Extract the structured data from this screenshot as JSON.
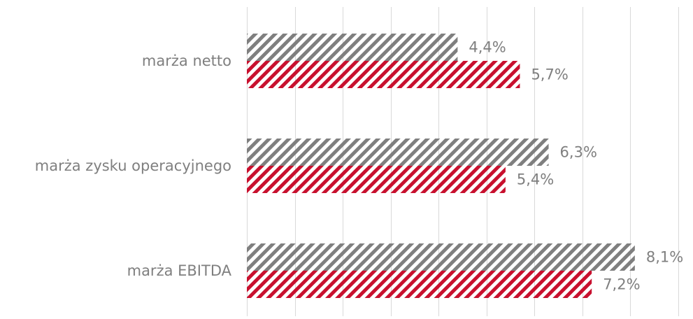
{
  "chart_data": {
    "type": "bar",
    "orientation": "horizontal",
    "title": "",
    "xlabel": "",
    "ylabel": "",
    "categories": [
      "marża netto",
      "marża zysku operacyjnego",
      "marża EBITDA"
    ],
    "series": [
      {
        "color": "#7f7f7f",
        "values": [
          4.4,
          6.3,
          8.1
        ],
        "labels": [
          "4,4%",
          "6,3%",
          "8,1%"
        ]
      },
      {
        "color": "#c8102e",
        "values": [
          5.7,
          5.4,
          7.2
        ],
        "labels": [
          "5,7%",
          "5,4%",
          "7,2%"
        ]
      }
    ],
    "xlim": [
      0,
      9
    ],
    "x_grid_step": 1,
    "grid": true,
    "legend": "none",
    "pattern": "diagonal-stripes"
  }
}
